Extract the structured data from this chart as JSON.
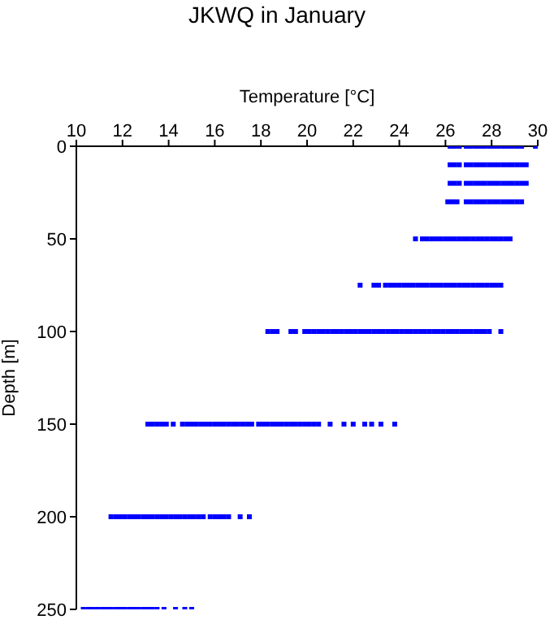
{
  "chart_data": {
    "type": "scatter",
    "title": "JKWQ in January",
    "xlabel": "Temperature [°C]",
    "ylabel": "Depth [m]",
    "xlim": [
      10,
      30
    ],
    "xticks": [
      10,
      12,
      14,
      16,
      18,
      20,
      22,
      24,
      26,
      28,
      30
    ],
    "ylim": [
      250,
      0
    ],
    "yticks": [
      0,
      50,
      100,
      150,
      200,
      250
    ],
    "grid": false,
    "legend": false,
    "marker": "square",
    "series": [
      {
        "color": "#0000ff",
        "x": [
          26.2,
          26.4,
          26.6,
          26.9,
          27.1,
          27.3,
          27.5,
          27.7,
          27.9,
          28.1,
          28.3,
          28.5,
          28.7,
          28.9,
          29.1,
          29.3,
          29.9
        ],
        "values": [
          0,
          0,
          0,
          0,
          0,
          0,
          0,
          0,
          0,
          0,
          0,
          0,
          0,
          0,
          0,
          0,
          0
        ]
      },
      {
        "color": "#0000ff",
        "x": [
          26.2,
          26.4,
          26.6,
          26.9,
          27.1,
          27.3,
          27.5,
          27.7,
          27.9,
          28.1,
          28.3,
          28.5,
          28.7,
          28.9,
          29.1,
          29.3,
          29.5
        ],
        "values": [
          10,
          10,
          10,
          10,
          10,
          10,
          10,
          10,
          10,
          10,
          10,
          10,
          10,
          10,
          10,
          10,
          10
        ]
      },
      {
        "color": "#0000ff",
        "x": [
          26.2,
          26.4,
          26.6,
          26.9,
          27.1,
          27.3,
          27.5,
          27.7,
          27.9,
          28.1,
          28.3,
          28.5,
          28.7,
          28.9,
          29.1,
          29.3,
          29.5
        ],
        "values": [
          20,
          20,
          20,
          20,
          20,
          20,
          20,
          20,
          20,
          20,
          20,
          20,
          20,
          20,
          20,
          20,
          20
        ]
      },
      {
        "color": "#0000ff",
        "x": [
          26.1,
          26.3,
          26.5,
          26.9,
          27.1,
          27.3,
          27.5,
          27.7,
          27.9,
          28.1,
          28.3,
          28.5,
          28.7,
          28.9,
          29.1,
          29.3
        ],
        "values": [
          30,
          30,
          30,
          30,
          30,
          30,
          30,
          30,
          30,
          30,
          30,
          30,
          30,
          30,
          30,
          30
        ]
      },
      {
        "color": "#0000ff",
        "x": [
          24.7,
          25.0,
          25.2,
          25.4,
          25.6,
          25.8,
          26.0,
          26.2,
          26.4,
          26.6,
          26.8,
          27.0,
          27.2,
          27.4,
          27.6,
          27.8,
          28.0,
          28.2,
          28.4,
          28.6,
          28.8
        ],
        "values": [
          50,
          50,
          50,
          50,
          50,
          50,
          50,
          50,
          50,
          50,
          50,
          50,
          50,
          50,
          50,
          50,
          50,
          50,
          50,
          50,
          50
        ]
      },
      {
        "color": "#0000ff",
        "x": [
          22.3,
          22.9,
          23.1,
          23.4,
          23.6,
          23.8,
          24.0,
          24.2,
          24.4,
          24.6,
          24.8,
          25.0,
          25.2,
          25.4,
          25.6,
          25.8,
          26.0,
          26.2,
          26.4,
          26.6,
          26.8,
          27.0,
          27.2,
          27.4,
          27.6,
          27.8,
          28.0,
          28.2,
          28.4
        ],
        "values": [
          75,
          75,
          75,
          75,
          75,
          75,
          75,
          75,
          75,
          75,
          75,
          75,
          75,
          75,
          75,
          75,
          75,
          75,
          75,
          75,
          75,
          75,
          75,
          75,
          75,
          75,
          75,
          75,
          75
        ]
      },
      {
        "color": "#0000ff",
        "x": [
          18.3,
          18.5,
          18.7,
          19.3,
          19.5,
          19.9,
          20.1,
          20.3,
          20.5,
          20.7,
          20.9,
          21.1,
          21.3,
          21.5,
          21.7,
          21.9,
          22.1,
          22.3,
          22.5,
          22.7,
          22.9,
          23.1,
          23.3,
          23.5,
          23.7,
          23.9,
          24.1,
          24.3,
          24.5,
          24.7,
          24.9,
          25.1,
          25.3,
          25.5,
          25.7,
          25.9,
          26.1,
          26.3,
          26.5,
          26.7,
          26.9,
          27.1,
          27.3,
          27.5,
          27.7,
          27.9,
          28.4
        ],
        "values": [
          100,
          100,
          100,
          100,
          100,
          100,
          100,
          100,
          100,
          100,
          100,
          100,
          100,
          100,
          100,
          100,
          100,
          100,
          100,
          100,
          100,
          100,
          100,
          100,
          100,
          100,
          100,
          100,
          100,
          100,
          100,
          100,
          100,
          100,
          100,
          100,
          100,
          100,
          100,
          100,
          100,
          100,
          100,
          100,
          100,
          100,
          100
        ]
      },
      {
        "color": "#0000ff",
        "x": [
          13.1,
          13.3,
          13.5,
          13.7,
          13.9,
          14.2,
          14.6,
          14.8,
          15.0,
          15.2,
          15.4,
          15.6,
          15.8,
          16.0,
          16.2,
          16.4,
          16.6,
          16.8,
          17.0,
          17.2,
          17.4,
          17.6,
          17.9,
          18.1,
          18.3,
          18.5,
          18.7,
          18.9,
          19.1,
          19.3,
          19.5,
          19.7,
          19.9,
          20.1,
          20.3,
          20.5,
          21.0,
          21.6,
          22.0,
          22.5,
          22.8,
          23.2,
          23.8
        ],
        "values": [
          150,
          150,
          150,
          150,
          150,
          150,
          150,
          150,
          150,
          150,
          150,
          150,
          150,
          150,
          150,
          150,
          150,
          150,
          150,
          150,
          150,
          150,
          150,
          150,
          150,
          150,
          150,
          150,
          150,
          150,
          150,
          150,
          150,
          150,
          150,
          150,
          150,
          150,
          150,
          150,
          150,
          150,
          150
        ]
      },
      {
        "color": "#0000ff",
        "x": [
          11.5,
          11.7,
          11.9,
          12.1,
          12.3,
          12.5,
          12.7,
          12.9,
          13.1,
          13.3,
          13.5,
          13.7,
          13.9,
          14.1,
          14.3,
          14.5,
          14.7,
          14.9,
          15.1,
          15.3,
          15.5,
          15.8,
          16.0,
          16.2,
          16.4,
          16.6,
          17.1,
          17.5
        ],
        "values": [
          200,
          200,
          200,
          200,
          200,
          200,
          200,
          200,
          200,
          200,
          200,
          200,
          200,
          200,
          200,
          200,
          200,
          200,
          200,
          200,
          200,
          200,
          200,
          200,
          200,
          200,
          200,
          200
        ]
      },
      {
        "color": "#0000ff",
        "x": [
          10.3,
          10.5,
          10.7,
          10.9,
          11.1,
          11.3,
          11.5,
          11.7,
          11.9,
          12.1,
          12.3,
          12.5,
          12.7,
          12.9,
          13.1,
          13.3,
          13.5,
          13.8,
          14.3,
          14.7,
          15.0
        ],
        "values": [
          250,
          250,
          250,
          250,
          250,
          250,
          250,
          250,
          250,
          250,
          250,
          250,
          250,
          250,
          250,
          250,
          250,
          250,
          250,
          250,
          250
        ]
      }
    ]
  }
}
